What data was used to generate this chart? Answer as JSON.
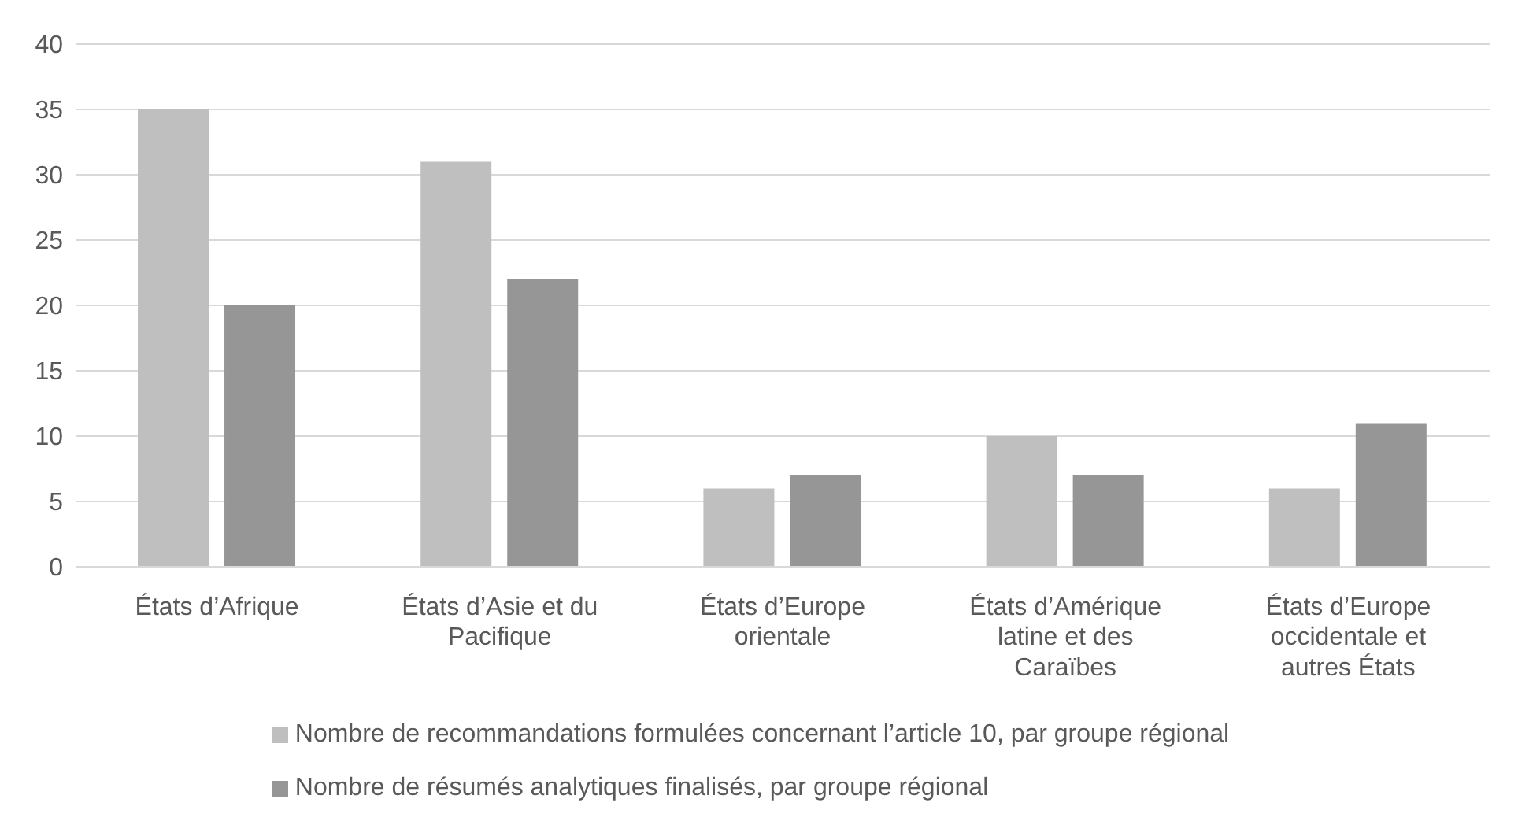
{
  "chart_data": {
    "type": "bar",
    "categories": [
      "États d’Afrique",
      "États d’Asie et du Pacifique",
      "États d’Europe orientale",
      "États d’Amérique latine et des Caraïbes",
      "États d’Europe occidentale et autres États"
    ],
    "series": [
      {
        "name": "Nombre de recommandations formulées concernant l’article 10, par groupe régional",
        "color": "#bfbfbf",
        "values": [
          35,
          31,
          6,
          10,
          6
        ]
      },
      {
        "name": "Nombre de résumés analytiques finalisés, par groupe régional",
        "color": "#969696",
        "values": [
          20,
          22,
          7,
          7,
          11
        ]
      }
    ],
    "ylim": [
      0,
      40
    ],
    "yticks": [
      0,
      5,
      10,
      15,
      20,
      25,
      30,
      35,
      40
    ],
    "grid": "y",
    "legend": "bottom"
  }
}
